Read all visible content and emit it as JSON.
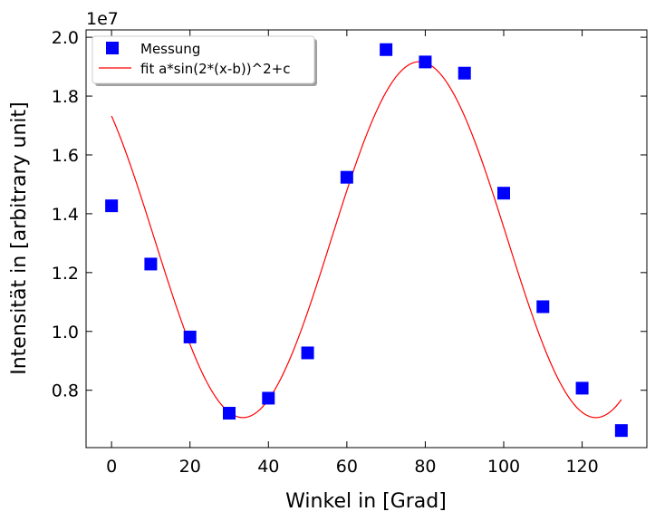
{
  "chart_data": {
    "type": "scatter",
    "title": "",
    "xlabel": "Winkel in [Grad]",
    "ylabel": "Intensität in [arbitrary unit]",
    "offset_text": "1e7",
    "xlim": [
      -6.5,
      136.5
    ],
    "ylim": [
      6.05,
      20.25
    ],
    "y_scale_note": "values in units of 1e7",
    "xticks": [
      0,
      20,
      40,
      60,
      80,
      100,
      120
    ],
    "yticks": [
      0.8,
      1.0,
      1.2,
      1.4,
      1.6,
      1.8,
      2.0
    ],
    "ytick_labels": [
      "0.8",
      "1.0",
      "1.2",
      "1.4",
      "1.6",
      "1.8",
      "2.0"
    ],
    "grid": false,
    "legend_position": "upper-left",
    "series": [
      {
        "name": "Messung",
        "kind": "scatter",
        "marker": "square",
        "color": "#0000ff",
        "x": [
          0,
          10,
          20,
          30,
          40,
          50,
          60,
          70,
          80,
          90,
          100,
          110,
          120,
          130
        ],
        "y": [
          14.27,
          12.29,
          9.81,
          7.22,
          7.73,
          9.27,
          15.24,
          19.58,
          19.16,
          18.78,
          14.7,
          10.84,
          8.07,
          6.63
        ]
      },
      {
        "name": "fit a*sin(2*(x-b))^2+c",
        "kind": "line",
        "color": "#ff0000",
        "function": "a*sin(2*(x-b))^2+c",
        "params": {
          "a": 12.1,
          "b": 33.5,
          "c": 7.07
        },
        "x_range": [
          0,
          130
        ]
      }
    ]
  }
}
